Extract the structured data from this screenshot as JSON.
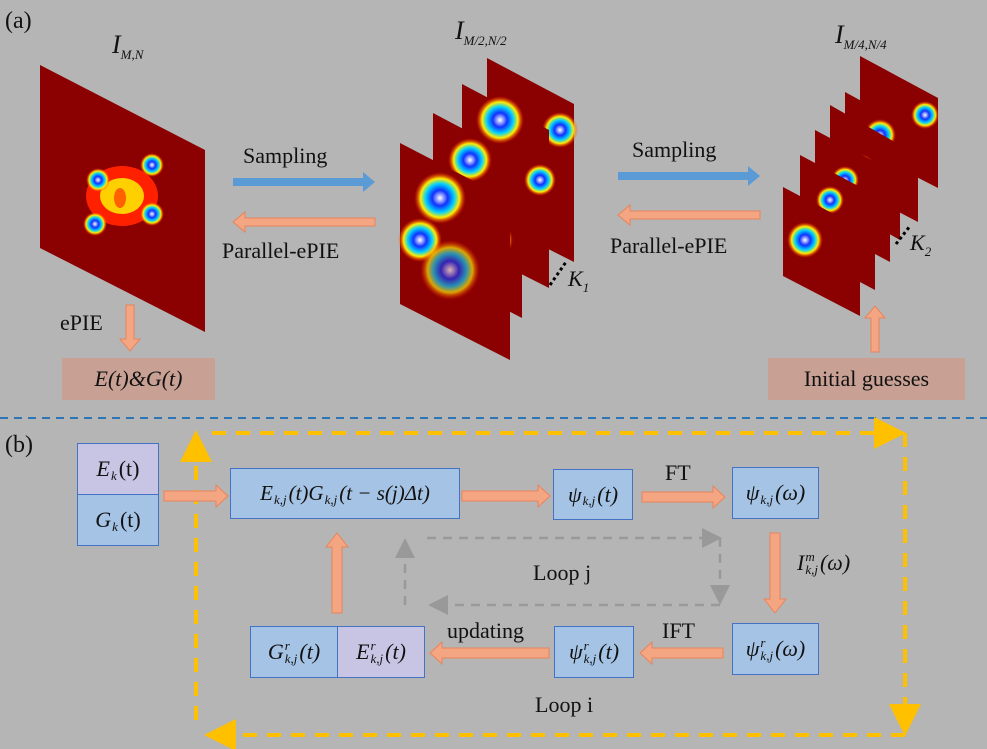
{
  "panel_a": {
    "label": "(a)",
    "full_res": {
      "base": "I",
      "sub": "M,N"
    },
    "half_res": {
      "base": "I",
      "sub": "M/2,N/2"
    },
    "quarter_res": {
      "base": "I",
      "sub": "M/4,N/4"
    },
    "sampling_1": "Sampling",
    "parallel_1": "Parallel-ePIE",
    "sampling_2": "Sampling",
    "parallel_2": "Parallel-ePIE",
    "k1": {
      "base": "K",
      "sub": "1"
    },
    "k2": {
      "base": "K",
      "sub": "2"
    },
    "epie": "ePIE",
    "result": "E(t)&G(t)",
    "initial": "Initial guesses"
  },
  "panel_b": {
    "label": "(b)",
    "ek": {
      "base": "E",
      "sub": "k",
      "arg": "(t)"
    },
    "gk": {
      "base": "G",
      "sub": "k",
      "arg": "(t)"
    },
    "product": "E_{k,j}(t)G_{k,j}(t − s(j)Δt)",
    "prod_parts": {
      "e": "E",
      "esub": "k,j",
      "earg": "(t)",
      "g": "G",
      "gsub": "k,j",
      "garg": "(t − s(j)Δt)"
    },
    "psi_t": {
      "base": "ψ",
      "sub": "k,j",
      "arg": "(t)"
    },
    "psi_w": {
      "base": "ψ",
      "sub": "k,j",
      "arg": "(ω)"
    },
    "ft": "FT",
    "meas": {
      "base": "I",
      "sup": "m",
      "sub": "k,j",
      "arg": "(ω)"
    },
    "psi_r_w": {
      "base": "ψ",
      "sup": "r",
      "sub": "k,j",
      "arg": "(ω)"
    },
    "ift": "IFT",
    "psi_r_t": {
      "base": "ψ",
      "sup": "r",
      "sub": "k,j",
      "arg": "(t)"
    },
    "updating": "updating",
    "g_r": {
      "base": "G",
      "sup": "r",
      "sub": "k,j",
      "arg": "(t)"
    },
    "e_r": {
      "base": "E",
      "sup": "r",
      "sub": "k,j",
      "arg": "(t)"
    },
    "loop_j": "Loop j",
    "loop_i": "Loop i"
  },
  "colors": {
    "background": "#b5b5b5",
    "blue_arrow": "#5b9bd5",
    "salmon_arrow": "#f4a582",
    "loop_i": "#ffc000",
    "box_blue": "#a5c3e4",
    "box_purple": "#c8c4e4",
    "box_rose": "#c8a094",
    "divider": "#2e75b6"
  }
}
